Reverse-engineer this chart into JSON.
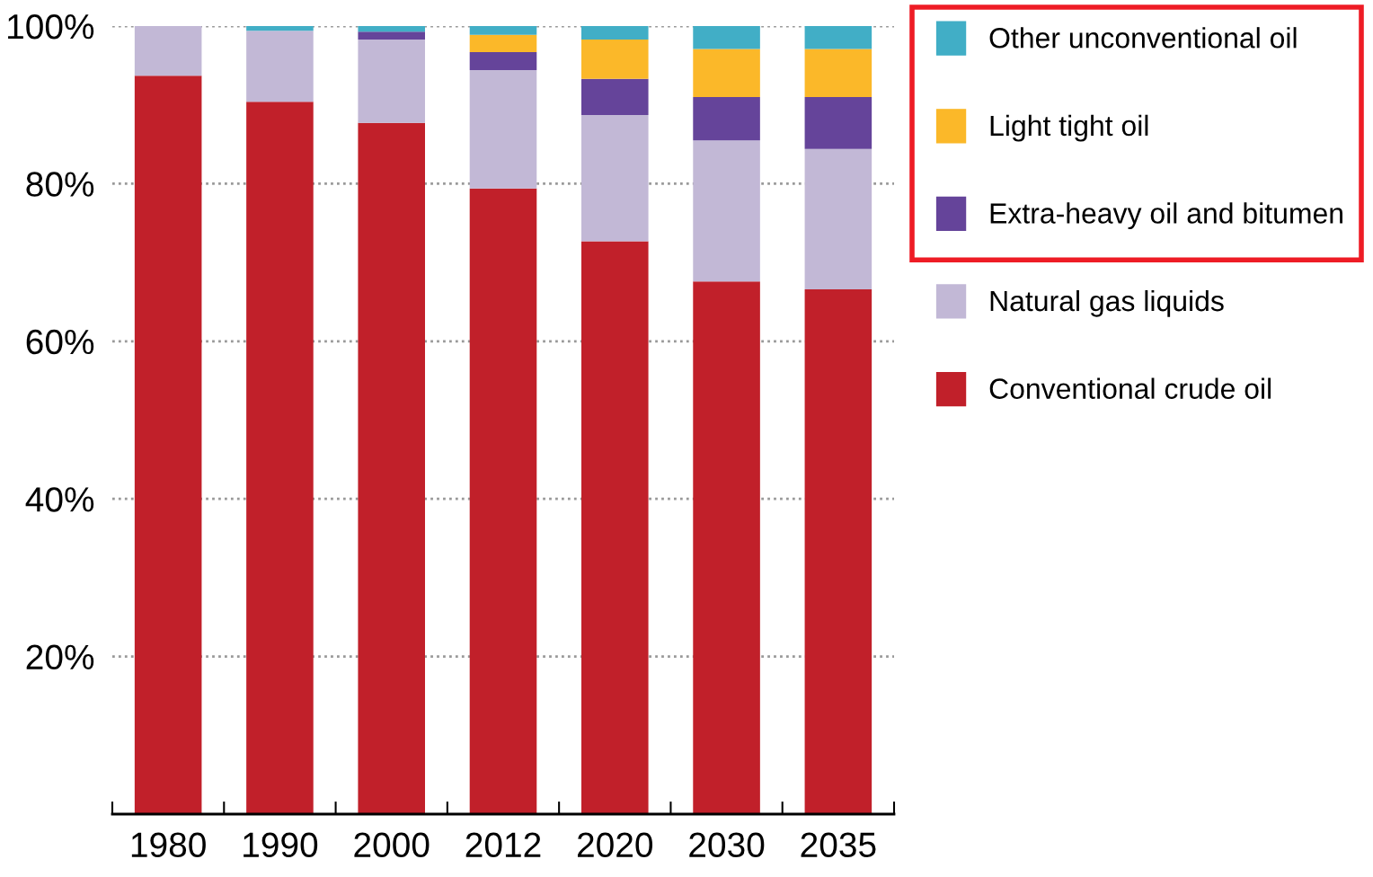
{
  "chart_data": {
    "type": "bar",
    "stacked": true,
    "categories": [
      "1980",
      "1990",
      "2000",
      "2012",
      "2020",
      "2030",
      "2035"
    ],
    "series": [
      {
        "name": "Conventional crude oil",
        "color": "#c1202a",
        "values": [
          93.7,
          90.4,
          87.7,
          79.4,
          72.7,
          67.6,
          66.6
        ]
      },
      {
        "name": "Natural gas liquids",
        "color": "#c2b8d6",
        "values": [
          6.3,
          9.0,
          10.6,
          15.0,
          16.0,
          17.9,
          17.8
        ]
      },
      {
        "name": "Extra-heavy oil and bitumen",
        "color": "#65449a",
        "values": [
          0,
          0,
          1.0,
          2.3,
          4.6,
          5.5,
          6.6
        ]
      },
      {
        "name": "Light tight oil",
        "color": "#fbb829",
        "values": [
          0,
          0,
          0,
          2.2,
          5.0,
          6.1,
          6.1
        ]
      },
      {
        "name": "Other unconventional oil",
        "color": "#41aec6",
        "values": [
          0,
          0.6,
          0.7,
          1.1,
          1.7,
          2.9,
          2.9
        ]
      }
    ],
    "ylim": [
      0,
      100
    ],
    "yticks": [
      {
        "value": 20,
        "label": "20%"
      },
      {
        "value": 40,
        "label": "40%"
      },
      {
        "value": 60,
        "label": "60%"
      },
      {
        "value": 80,
        "label": "80%"
      },
      {
        "value": 100,
        "label": "100%"
      }
    ],
    "grid": "y",
    "legend": "right"
  }
}
